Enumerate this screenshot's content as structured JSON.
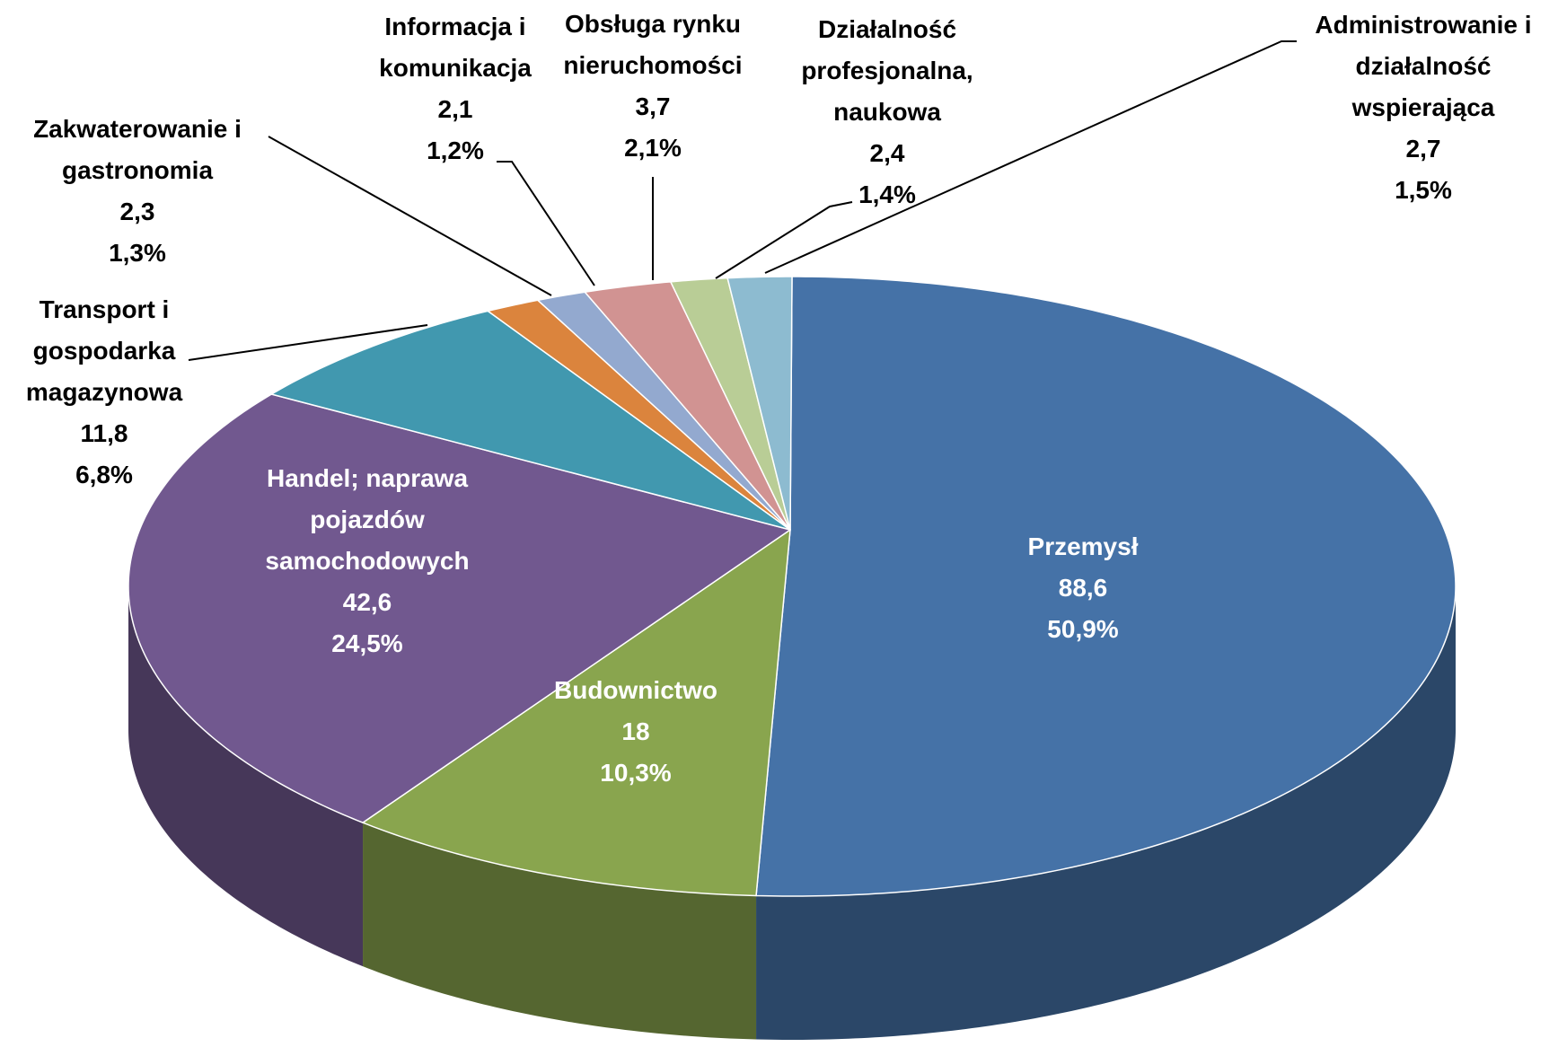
{
  "chart_data": {
    "type": "pie",
    "three_d": true,
    "categories": [
      "Przemysł",
      "Budownictwo",
      "Handel; naprawa pojazdów samochodowych",
      "Transport i gospodarka magazynowa",
      "Zakwaterowanie i gastronomia",
      "Informacja i komunikacja",
      "Obsługa rynku nieruchomości",
      "Działalność profesjonalna, naukowa",
      "Administrowanie i działalność wspierająca"
    ],
    "values": [
      88.6,
      18,
      42.6,
      11.8,
      2.3,
      2.1,
      3.7,
      2.4,
      2.7
    ],
    "value_labels": [
      "88,6",
      "18",
      "42,6",
      "11,8",
      "2,3",
      "2,1",
      "3,7",
      "2,4",
      "2,7"
    ],
    "percents": [
      50.9,
      10.3,
      24.5,
      6.8,
      1.3,
      1.2,
      2.1,
      1.4,
      1.5
    ],
    "percent_labels": [
      "50,9%",
      "10,3%",
      "24,5%",
      "6,8%",
      "1,3%",
      "1,2%",
      "2,1%",
      "1,4%",
      "1,5%"
    ],
    "colors": [
      "#4572a7",
      "#89a54e",
      "#71588f",
      "#4198af",
      "#db843d",
      "#93a9cf",
      "#d19392",
      "#b9cd96",
      "#8dbbd0"
    ]
  }
}
